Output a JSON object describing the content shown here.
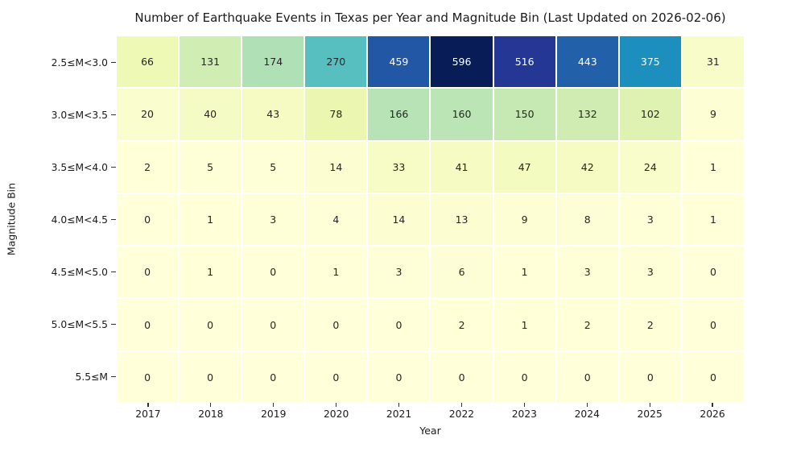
{
  "chart_data": {
    "type": "heatmap",
    "title": "Number of Earthquake Events in Texas per Year and Magnitude Bin (Last Updated on 2026-02-06)",
    "xlabel": "Year",
    "ylabel": "Magnitude Bin",
    "x": [
      "2017",
      "2018",
      "2019",
      "2020",
      "2021",
      "2022",
      "2023",
      "2024",
      "2025",
      "2026"
    ],
    "y": [
      "2.5≤M<3.0",
      "3.0≤M<3.5",
      "3.5≤M<4.0",
      "4.0≤M<4.5",
      "4.5≤M<5.0",
      "5.0≤M<5.5",
      "5.5≤M"
    ],
    "values": [
      [
        66,
        131,
        174,
        270,
        459,
        596,
        516,
        443,
        375,
        31
      ],
      [
        20,
        40,
        43,
        78,
        166,
        160,
        150,
        132,
        102,
        9
      ],
      [
        2,
        5,
        5,
        14,
        33,
        41,
        47,
        42,
        24,
        1
      ],
      [
        0,
        1,
        3,
        4,
        14,
        13,
        9,
        8,
        3,
        1
      ],
      [
        0,
        1,
        0,
        1,
        3,
        6,
        1,
        3,
        3,
        0
      ],
      [
        0,
        0,
        0,
        0,
        0,
        2,
        1,
        2,
        2,
        0
      ],
      [
        0,
        0,
        0,
        0,
        0,
        0,
        0,
        0,
        0,
        0
      ]
    ],
    "colormap": "YlGnBu",
    "vmin": 0,
    "vmax": 596,
    "annotations": true,
    "grid": false,
    "legend": "none",
    "cell_line_color": "#ffffff",
    "annotation_dark_text": "#262626",
    "annotation_light_text": "#ffffff",
    "background": "#ffffff"
  }
}
